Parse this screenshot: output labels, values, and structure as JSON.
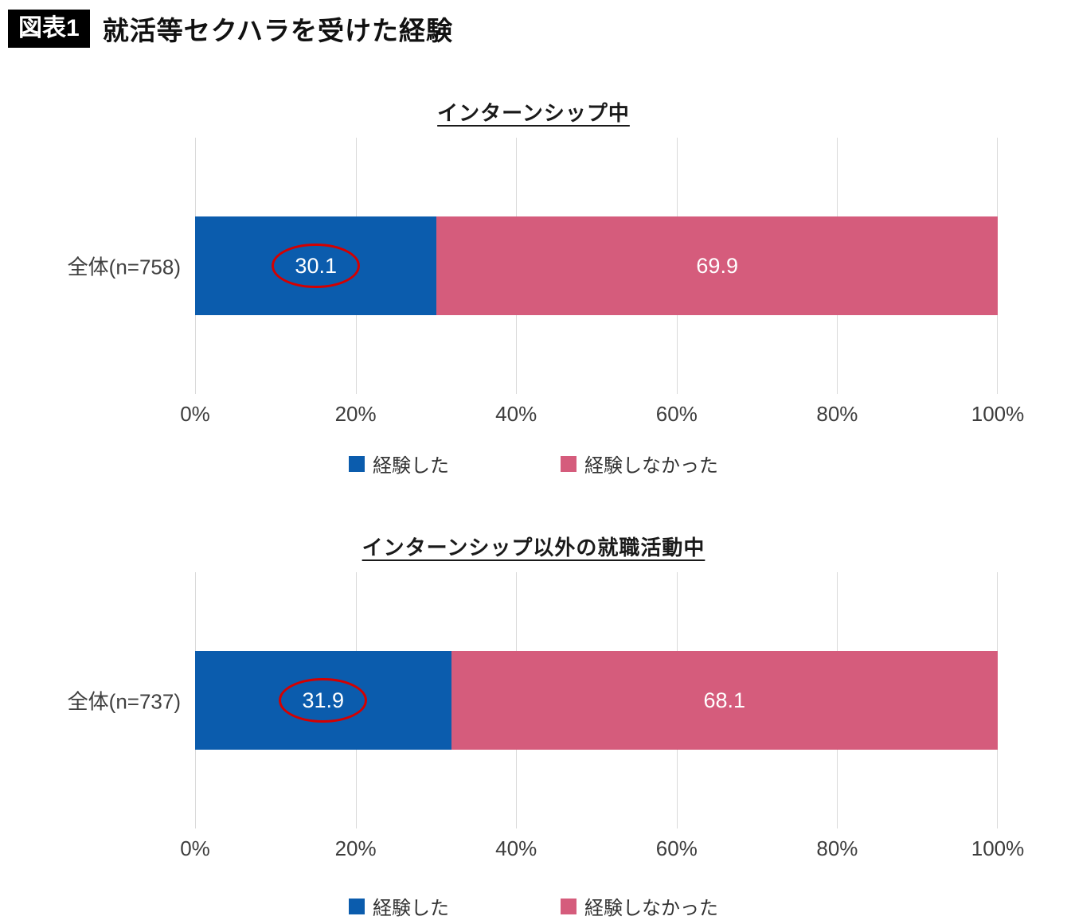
{
  "header": {
    "badge": "図表1",
    "title": "就活等セクハラを受けた経験"
  },
  "chart_data": [
    {
      "type": "bar",
      "orientation": "horizontal",
      "stacked": true,
      "title": "インターンシップ中",
      "categories": [
        "全体(n=758)"
      ],
      "series": [
        {
          "name": "経験した",
          "color": "#0b5cad",
          "values": [
            30.1
          ]
        },
        {
          "name": "経験しなかった",
          "color": "#d55c7c",
          "values": [
            69.9
          ]
        }
      ],
      "x_ticks": [
        "0%",
        "20%",
        "40%",
        "60%",
        "80%",
        "100%"
      ],
      "xlim": [
        0,
        100
      ],
      "grid": "vertical",
      "legend_position": "bottom",
      "annotation": {
        "type": "ellipse",
        "target_series": 0,
        "target_value": 30.1,
        "color": "#d40000"
      }
    },
    {
      "type": "bar",
      "orientation": "horizontal",
      "stacked": true,
      "title": "インターンシップ以外の就職活動中",
      "categories": [
        "全体(n=737)"
      ],
      "series": [
        {
          "name": "経験した",
          "color": "#0b5cad",
          "values": [
            31.9
          ]
        },
        {
          "name": "経験しなかった",
          "color": "#d55c7c",
          "values": [
            68.1
          ]
        }
      ],
      "x_ticks": [
        "0%",
        "20%",
        "40%",
        "60%",
        "80%",
        "100%"
      ],
      "xlim": [
        0,
        100
      ],
      "grid": "vertical",
      "legend_position": "bottom",
      "annotation": {
        "type": "ellipse",
        "target_series": 0,
        "target_value": 31.9,
        "color": "#d40000"
      }
    }
  ],
  "colors": {
    "experienced_blue": "#0b5cad",
    "not_experienced_pink": "#d55c7c",
    "annotation_red": "#d40000",
    "gridline_gray": "#d9d9d9",
    "badge_bg": "#000000"
  }
}
